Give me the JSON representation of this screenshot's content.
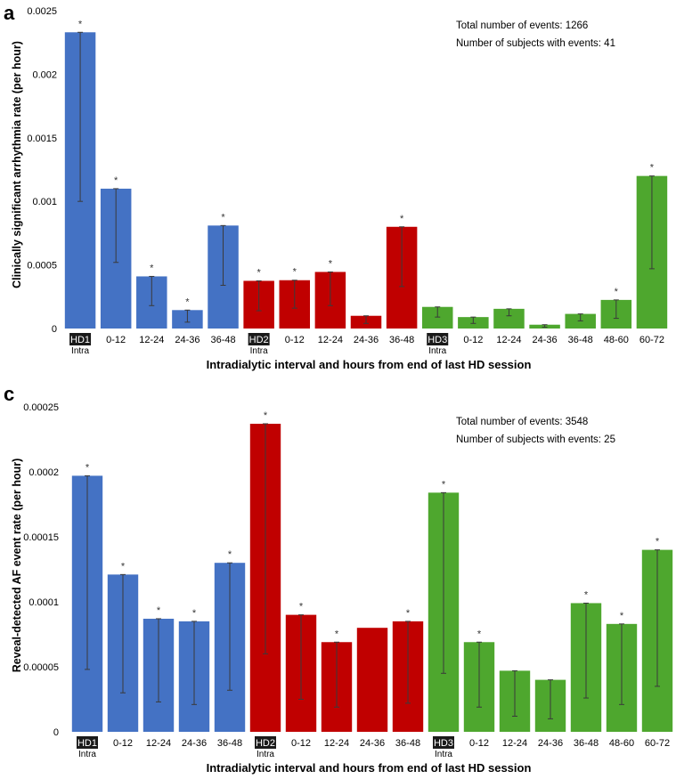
{
  "panels": [
    {
      "letter": "a",
      "ylabel": "Clinically significant arrhythmia rate (per hour)",
      "xlabel": "Intradialytic interval and hours from end of last HD session",
      "annotation_lines": [
        "Total number of events: 1266",
        "Number of subjects with events: 41"
      ],
      "chart_data": {
        "type": "bar",
        "ylim": [
          0,
          0.0025
        ],
        "ytick_values": [
          0,
          0.0005,
          0.001,
          0.0015,
          0.002,
          0.0025
        ],
        "ytick_labels": [
          "0",
          "0.0005",
          "0.001",
          "0.0015",
          "0.002",
          "0.0025"
        ],
        "categories": [
          "HD1",
          "0-12",
          "12-24",
          "24-36",
          "36-48",
          "HD2",
          "0-12",
          "12-24",
          "24-36",
          "36-48",
          "HD3",
          "0-12",
          "12-24",
          "24-36",
          "36-48",
          "48-60",
          "60-72"
        ],
        "sublabels": [
          "Intra",
          "",
          "",
          "",
          "",
          "Intra",
          "",
          "",
          "",
          "",
          "Intra",
          "",
          "",
          "",
          "",
          "",
          ""
        ],
        "highlighted": [
          true,
          false,
          false,
          false,
          false,
          true,
          false,
          false,
          false,
          false,
          true,
          false,
          false,
          false,
          false,
          false,
          false
        ],
        "values": [
          0.00233,
          0.0011,
          0.00041,
          0.000145,
          0.00081,
          0.000375,
          0.00038,
          0.000445,
          0.0001,
          0.0008,
          0.00017,
          9e-05,
          0.000155,
          3e-05,
          0.000115,
          0.000225,
          0.0012
        ],
        "err_low": [
          0.001,
          0.00052,
          0.00018,
          5e-05,
          0.00034,
          0.00014,
          0.00016,
          0.00018,
          4e-05,
          0.00033,
          9e-05,
          4e-05,
          0.0001,
          1e-05,
          6e-05,
          8e-05,
          0.00047
        ],
        "err_high": [
          0.00233,
          0.0011,
          0.00041,
          0.000145,
          0.00081,
          0.000375,
          0.00038,
          0.000445,
          0.0001,
          0.0008,
          0.00017,
          9e-05,
          0.000155,
          3e-05,
          0.000115,
          0.000225,
          0.0012
        ],
        "significant": [
          true,
          true,
          true,
          true,
          true,
          true,
          true,
          true,
          false,
          true,
          false,
          false,
          false,
          false,
          false,
          true,
          true
        ],
        "group_colors": [
          "#4472C4",
          "#4472C4",
          "#4472C4",
          "#4472C4",
          "#4472C4",
          "#C00000",
          "#C00000",
          "#C00000",
          "#C00000",
          "#C00000",
          "#4EA72E",
          "#4EA72E",
          "#4EA72E",
          "#4EA72E",
          "#4EA72E",
          "#4EA72E",
          "#4EA72E"
        ],
        "significance_marker": "*"
      }
    },
    {
      "letter": "c",
      "ylabel": "Reveal-detected AF event rate (per hour)",
      "xlabel": "Intradialytic interval and hours from end of last HD session",
      "annotation_lines": [
        "Total number of events: 3548",
        "Number of subjects with events: 25"
      ],
      "chart_data": {
        "type": "bar",
        "ylim": [
          0,
          0.00025
        ],
        "ytick_values": [
          0,
          5e-05,
          0.0001,
          0.00015,
          0.0002,
          0.00025
        ],
        "ytick_labels": [
          "0",
          "0.00005",
          "0.0001",
          "0.00015",
          "0.0002",
          "0.00025"
        ],
        "categories": [
          "HD1",
          "0-12",
          "12-24",
          "24-36",
          "36-48",
          "HD2",
          "0-12",
          "12-24",
          "24-36",
          "36-48",
          "HD3",
          "0-12",
          "12-24",
          "24-36",
          "36-48",
          "48-60",
          "60-72"
        ],
        "sublabels": [
          "Intra",
          "",
          "",
          "",
          "",
          "Intra",
          "",
          "",
          "",
          "",
          "Intra",
          "",
          "",
          "",
          "",
          "",
          ""
        ],
        "highlighted": [
          true,
          false,
          false,
          false,
          false,
          true,
          false,
          false,
          false,
          false,
          true,
          false,
          false,
          false,
          false,
          false,
          false
        ],
        "values": [
          0.000197,
          0.000121,
          8.7e-05,
          8.5e-05,
          0.00013,
          0.000237,
          9e-05,
          6.9e-05,
          8e-05,
          8.5e-05,
          0.000184,
          6.9e-05,
          4.7e-05,
          4e-05,
          9.9e-05,
          8.3e-05,
          0.00014
        ],
        "err_low": [
          4.8e-05,
          3e-05,
          2.3e-05,
          2.1e-05,
          3.2e-05,
          6e-05,
          2.5e-05,
          1.9e-05,
          8e-05,
          2.2e-05,
          4.5e-05,
          1.9e-05,
          1.2e-05,
          1e-05,
          2.6e-05,
          2.1e-05,
          3.5e-05
        ],
        "err_high": [
          0.000197,
          0.000121,
          8.7e-05,
          8.5e-05,
          0.00013,
          0.000237,
          9e-05,
          6.9e-05,
          8e-05,
          8.5e-05,
          0.000184,
          6.9e-05,
          4.7e-05,
          4e-05,
          9.9e-05,
          8.3e-05,
          0.00014
        ],
        "significant": [
          true,
          true,
          true,
          true,
          true,
          true,
          true,
          true,
          false,
          true,
          true,
          true,
          false,
          false,
          true,
          true,
          true
        ],
        "group_colors": [
          "#4472C4",
          "#4472C4",
          "#4472C4",
          "#4472C4",
          "#4472C4",
          "#C00000",
          "#C00000",
          "#C00000",
          "#C00000",
          "#C00000",
          "#4EA72E",
          "#4EA72E",
          "#4EA72E",
          "#4EA72E",
          "#4EA72E",
          "#4EA72E",
          "#4EA72E"
        ],
        "significance_marker": "*"
      }
    }
  ]
}
